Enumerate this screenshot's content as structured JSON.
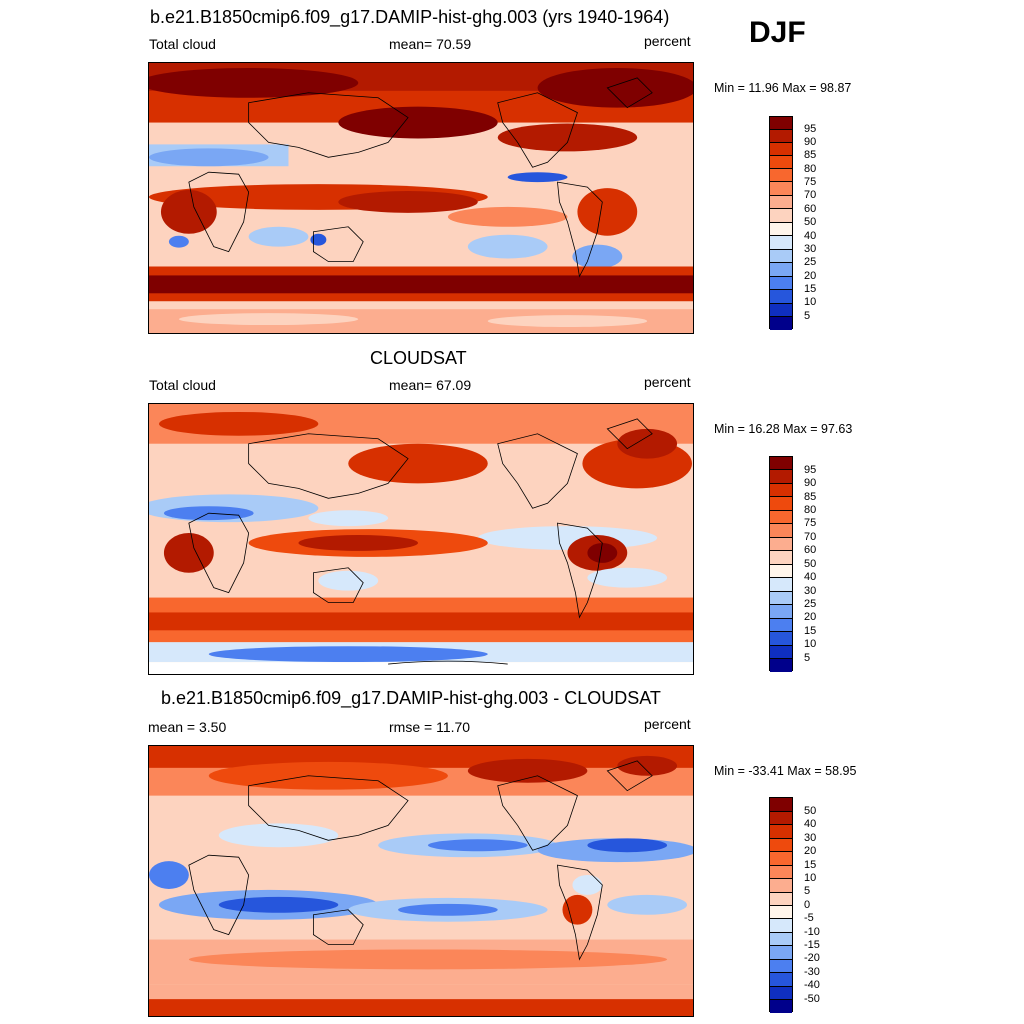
{
  "season": "DJF",
  "panels": [
    {
      "id": "model",
      "title": "b.e21.B1850cmip6.f09_g17.DAMIP-hist-ghg.003 (yrs 1940-1964)",
      "left_label": "Total cloud",
      "center_label": "mean=  70.59",
      "right_label": "percent",
      "min_max": "Min =  11.96 Max =  98.87",
      "colorbar": {
        "labels": [
          "95",
          "90",
          "85",
          "80",
          "75",
          "70",
          "60",
          "50",
          "40",
          "30",
          "25",
          "20",
          "15",
          "10",
          "5"
        ],
        "colors": [
          "#7f0000",
          "#b31a00",
          "#d73000",
          "#ee4a0d",
          "#f8672e",
          "#fb8659",
          "#fcad8f",
          "#fdd3bf",
          "#fff5eb",
          "#d6e8fb",
          "#a9cbf7",
          "#7aa7f4",
          "#4c7ff0",
          "#2656dc",
          "#0f2fc0",
          "#00008b"
        ]
      }
    },
    {
      "id": "obs",
      "title": "CLOUDSAT",
      "left_label": "Total cloud",
      "center_label": "mean=  67.09",
      "right_label": "percent",
      "min_max": "Min =  16.28 Max =  97.63",
      "colorbar": {
        "labels": [
          "95",
          "90",
          "85",
          "80",
          "75",
          "70",
          "60",
          "50",
          "40",
          "30",
          "25",
          "20",
          "15",
          "10",
          "5"
        ],
        "colors": [
          "#7f0000",
          "#b31a00",
          "#d73000",
          "#ee4a0d",
          "#f8672e",
          "#fb8659",
          "#fcad8f",
          "#fdd3bf",
          "#fff5eb",
          "#d6e8fb",
          "#a9cbf7",
          "#7aa7f4",
          "#4c7ff0",
          "#2656dc",
          "#0f2fc0",
          "#00008b"
        ]
      }
    },
    {
      "id": "diff",
      "title": "b.e21.B1850cmip6.f09_g17.DAMIP-hist-ghg.003 - CLOUDSAT",
      "left_label": "mean =   3.50",
      "center_label": "rmse =  11.70",
      "right_label": "percent",
      "min_max": "Min = -33.41 Max =  58.95",
      "colorbar": {
        "labels": [
          "50",
          "40",
          "30",
          "20",
          "15",
          "10",
          "5",
          "0",
          "-5",
          "-10",
          "-15",
          "-20",
          "-30",
          "-40",
          "-50"
        ],
        "colors": [
          "#7f0000",
          "#b31a00",
          "#d73000",
          "#ee4a0d",
          "#f8672e",
          "#fb8659",
          "#fcad8f",
          "#fdd3bf",
          "#fff5eb",
          "#d6e8fb",
          "#a9cbf7",
          "#7aa7f4",
          "#4c7ff0",
          "#2656dc",
          "#0f2fc0",
          "#00008b"
        ]
      }
    }
  ]
}
